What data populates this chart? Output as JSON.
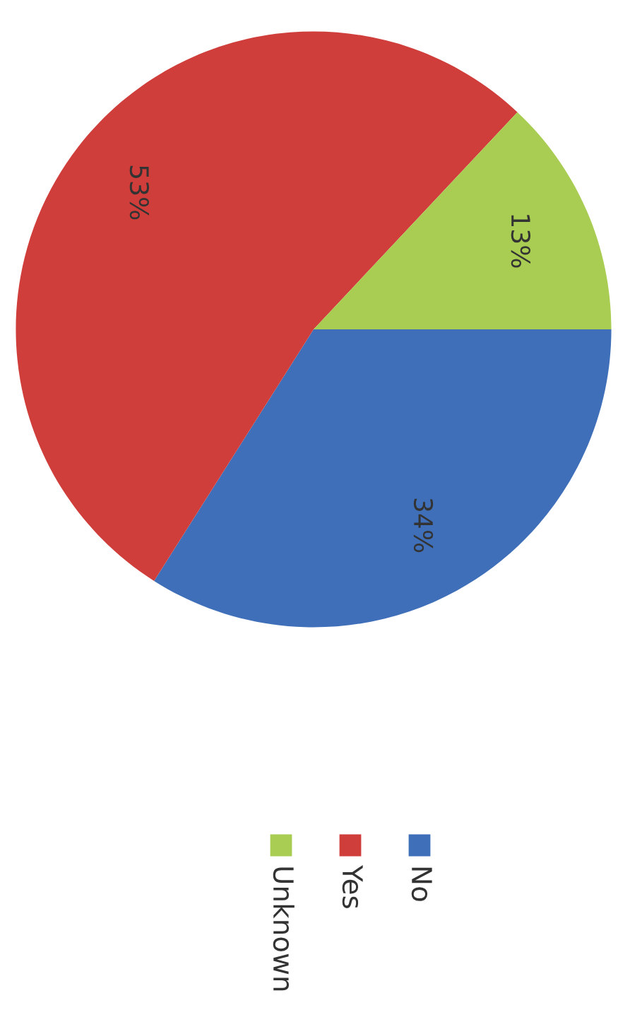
{
  "chart_data": {
    "type": "pie",
    "categories": [
      "No",
      "Yes",
      "Unknown"
    ],
    "values": [
      34,
      53,
      13
    ],
    "colors": [
      "#3f6fb8",
      "#cf3e3a",
      "#a9cc52"
    ],
    "value_labels": [
      "34%",
      "53%",
      "13%"
    ],
    "legend": "bottom"
  }
}
